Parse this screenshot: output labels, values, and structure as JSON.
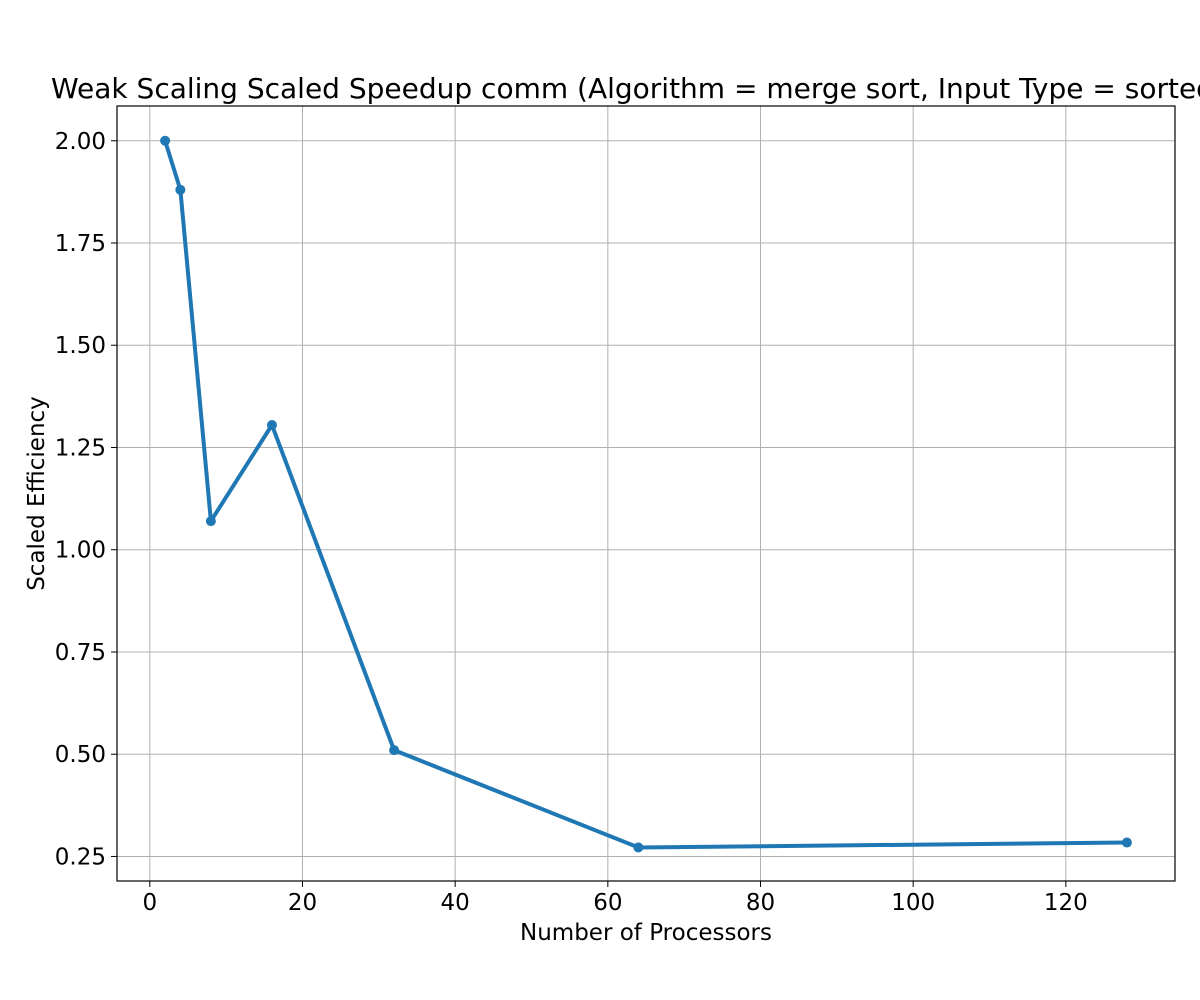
{
  "chart_data": {
    "type": "line",
    "title": "Weak Scaling Scaled Speedup comm (Algorithm = merge sort, Input Type = sorted)",
    "xlabel": "Number of Processors",
    "ylabel": "Scaled Efficiency",
    "xlim": [
      -4.3,
      134.3
    ],
    "ylim": [
      0.19,
      2.085
    ],
    "xticks": [
      0,
      20,
      40,
      60,
      80,
      100,
      120
    ],
    "xtick_labels": [
      "0",
      "20",
      "40",
      "60",
      "80",
      "100",
      "120"
    ],
    "yticks": [
      0.25,
      0.5,
      0.75,
      1.0,
      1.25,
      1.5,
      1.75,
      2.0
    ],
    "ytick_labels": [
      "0.25",
      "0.50",
      "0.75",
      "1.00",
      "1.25",
      "1.50",
      "1.75",
      "2.00"
    ],
    "grid": true,
    "series": [
      {
        "color": "#1f77b4",
        "x": [
          2,
          4,
          8,
          16,
          32,
          64,
          128
        ],
        "y": [
          2.0,
          1.88,
          1.07,
          1.305,
          0.51,
          0.272,
          0.284
        ]
      }
    ]
  }
}
